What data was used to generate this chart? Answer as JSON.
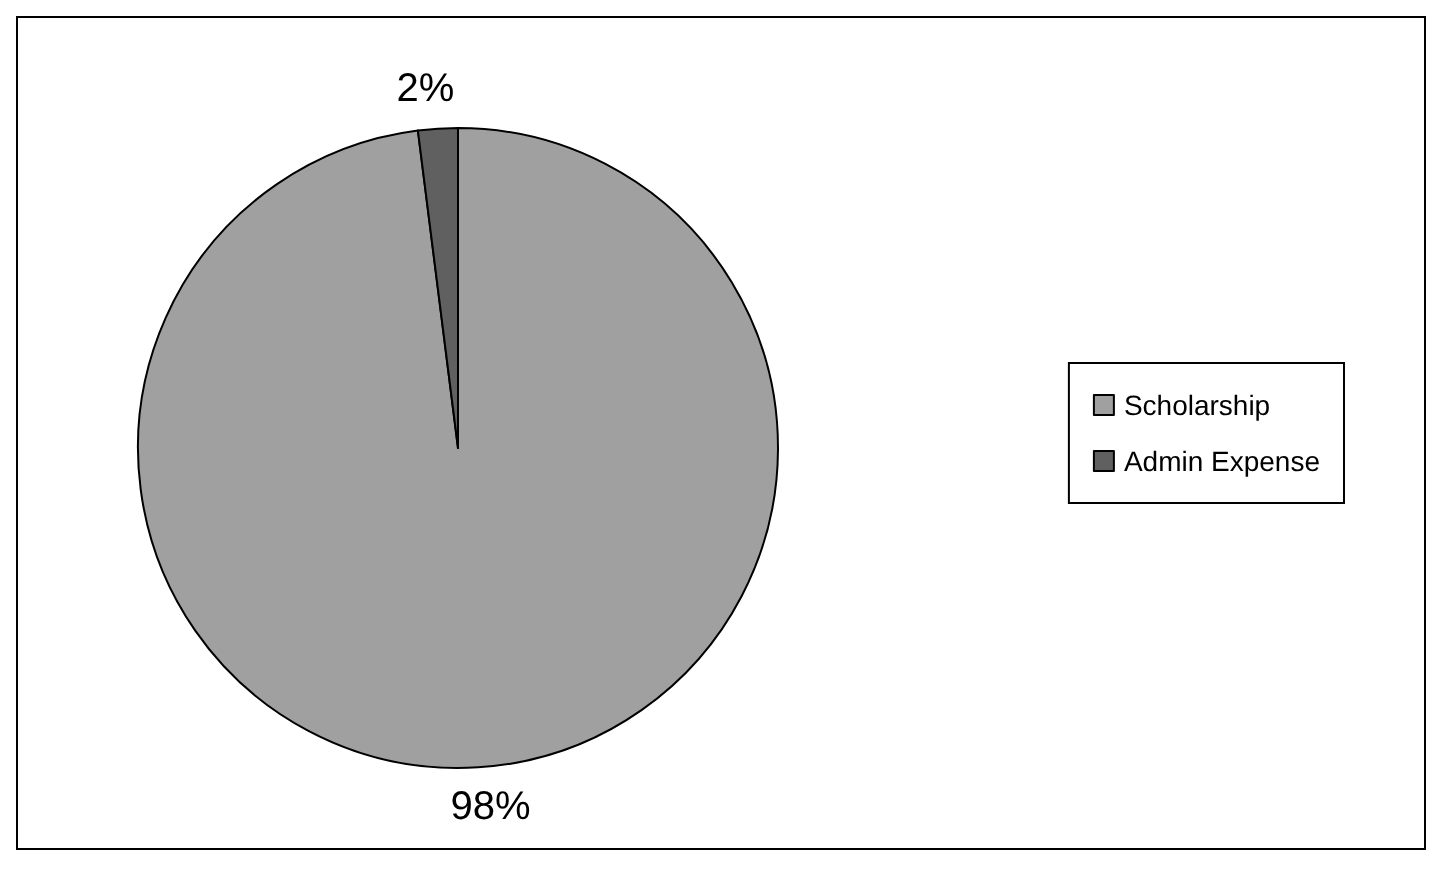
{
  "chart_data": {
    "type": "pie",
    "categories": [
      "Scholarship",
      "Admin Expense"
    ],
    "values": [
      98,
      2
    ],
    "colors": [
      "#a0a0a0",
      "#606060"
    ],
    "value_labels": [
      "98%",
      "2%"
    ],
    "legend": "right"
  }
}
